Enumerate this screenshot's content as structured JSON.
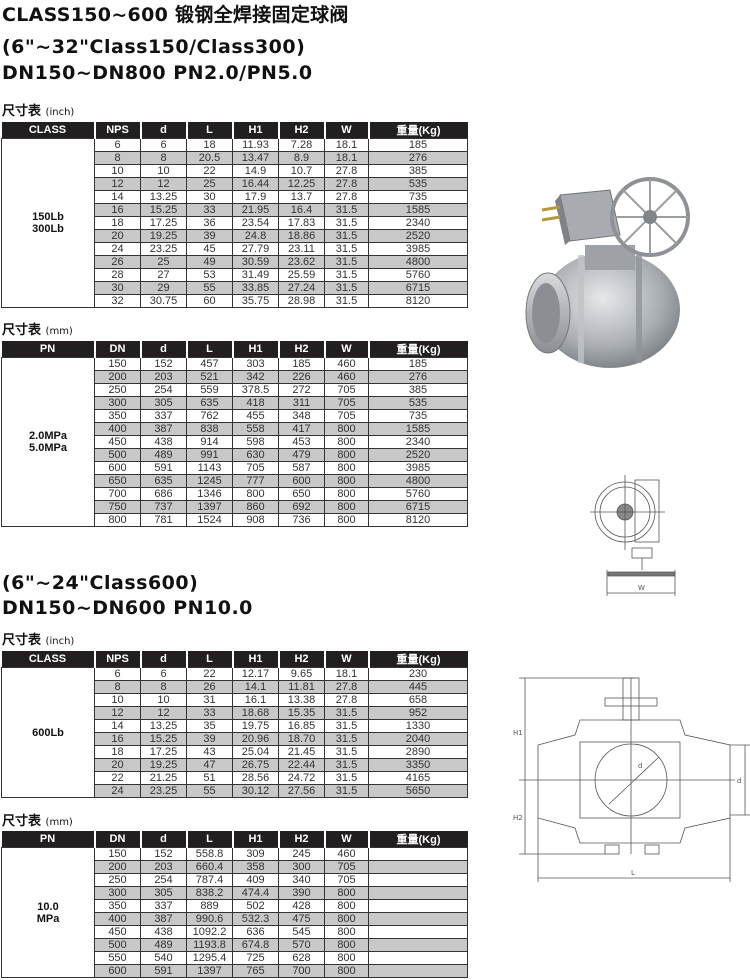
{
  "title": "CLASS150~600 锻钢全焊接固定球阀",
  "section1": {
    "line1": "(6\"~32\"Class150/Class300)",
    "line2": "DN150~DN800   PN2.0/PN5.0"
  },
  "section2": {
    "line1": "(6\"~24\"Class600)",
    "line2": "DN150~DN600   PN10.0"
  },
  "size_label": "尺寸表",
  "unit_inch": "(inch)",
  "unit_mm": "(mm)",
  "tables": [
    {
      "headers": [
        "CLASS",
        "NPS",
        "d",
        "L",
        "H1",
        "H2",
        "W",
        "重量(Kg)"
      ],
      "group": [
        "150Lb",
        "300Lb"
      ],
      "rows": [
        [
          "6",
          "6",
          "18",
          "11.93",
          "7.28",
          "18.1",
          "185"
        ],
        [
          "8",
          "8",
          "20.5",
          "13.47",
          "8.9",
          "18.1",
          "276"
        ],
        [
          "10",
          "10",
          "22",
          "14.9",
          "10.7",
          "27.8",
          "385"
        ],
        [
          "12",
          "12",
          "25",
          "16.44",
          "12.25",
          "27.8",
          "535"
        ],
        [
          "14",
          "13.25",
          "30",
          "17.9",
          "13.7",
          "27.8",
          "735"
        ],
        [
          "16",
          "15.25",
          "33",
          "21.95",
          "16.4",
          "31.5",
          "1585"
        ],
        [
          "18",
          "17.25",
          "36",
          "23.54",
          "17.83",
          "31.5",
          "2340"
        ],
        [
          "20",
          "19.25",
          "39",
          "24.8",
          "18.86",
          "31.5",
          "2520"
        ],
        [
          "24",
          "23.25",
          "45",
          "27.79",
          "23.11",
          "31.5",
          "3985"
        ],
        [
          "26",
          "25",
          "49",
          "30.59",
          "23.62",
          "31.5",
          "4800"
        ],
        [
          "28",
          "27",
          "53",
          "31.49",
          "25.59",
          "31.5",
          "5760"
        ],
        [
          "30",
          "29",
          "55",
          "33.85",
          "27.24",
          "31.5",
          "6715"
        ],
        [
          "32",
          "30.75",
          "60",
          "35.75",
          "28.98",
          "31.5",
          "8120"
        ]
      ]
    },
    {
      "headers": [
        "PN",
        "DN",
        "d",
        "L",
        "H1",
        "H2",
        "W",
        "重量(Kg)"
      ],
      "group": [
        "2.0MPa",
        "5.0MPa"
      ],
      "rows": [
        [
          "150",
          "152",
          "457",
          "303",
          "185",
          "460",
          "185"
        ],
        [
          "200",
          "203",
          "521",
          "342",
          "226",
          "460",
          "276"
        ],
        [
          "250",
          "254",
          "559",
          "378.5",
          "272",
          "705",
          "385"
        ],
        [
          "300",
          "305",
          "635",
          "418",
          "311",
          "705",
          "535"
        ],
        [
          "350",
          "337",
          "762",
          "455",
          "348",
          "705",
          "735"
        ],
        [
          "400",
          "387",
          "838",
          "558",
          "417",
          "800",
          "1585"
        ],
        [
          "450",
          "438",
          "914",
          "598",
          "453",
          "800",
          "2340"
        ],
        [
          "500",
          "489",
          "991",
          "630",
          "479",
          "800",
          "2520"
        ],
        [
          "600",
          "591",
          "1143",
          "705",
          "587",
          "800",
          "3985"
        ],
        [
          "650",
          "635",
          "1245",
          "777",
          "600",
          "800",
          "4800"
        ],
        [
          "700",
          "686",
          "1346",
          "800",
          "650",
          "800",
          "5760"
        ],
        [
          "750",
          "737",
          "1397",
          "860",
          "692",
          "800",
          "6715"
        ],
        [
          "800",
          "781",
          "1524",
          "908",
          "736",
          "800",
          "8120"
        ]
      ]
    },
    {
      "headers": [
        "CLASS",
        "NPS",
        "d",
        "L",
        "H1",
        "H2",
        "W",
        "重量(Kg)"
      ],
      "group": [
        "600Lb"
      ],
      "rows": [
        [
          "6",
          "6",
          "22",
          "12.17",
          "9.65",
          "18.1",
          "230"
        ],
        [
          "8",
          "8",
          "26",
          "14.1",
          "11.81",
          "27.8",
          "445"
        ],
        [
          "10",
          "10",
          "31",
          "16.1",
          "13.38",
          "27.8",
          "658"
        ],
        [
          "12",
          "12",
          "33",
          "18.68",
          "15.35",
          "31.5",
          "952"
        ],
        [
          "14",
          "13.25",
          "35",
          "19.75",
          "16.85",
          "31.5",
          "1330"
        ],
        [
          "16",
          "15.25",
          "39",
          "20.96",
          "18.70",
          "31.5",
          "2040"
        ],
        [
          "18",
          "17.25",
          "43",
          "25.04",
          "21.45",
          "31.5",
          "2890"
        ],
        [
          "20",
          "19.25",
          "47",
          "26.75",
          "22.44",
          "31.5",
          "3350"
        ],
        [
          "22",
          "21.25",
          "51",
          "28.56",
          "24.72",
          "31.5",
          "4165"
        ],
        [
          "24",
          "23.25",
          "55",
          "30.12",
          "27.56",
          "31.5",
          "5650"
        ]
      ]
    },
    {
      "headers": [
        "PN",
        "DN",
        "d",
        "L",
        "H1",
        "H2",
        "W",
        "重量(Kg)"
      ],
      "group": [
        "10.0",
        "MPa"
      ],
      "rows": [
        [
          "150",
          "152",
          "558.8",
          "309",
          "245",
          "460",
          ""
        ],
        [
          "200",
          "203",
          "660.4",
          "358",
          "300",
          "705",
          ""
        ],
        [
          "250",
          "254",
          "787.4",
          "409",
          "340",
          "705",
          ""
        ],
        [
          "300",
          "305",
          "838.2",
          "474.4",
          "390",
          "800",
          ""
        ],
        [
          "350",
          "337",
          "889",
          "502",
          "428",
          "800",
          ""
        ],
        [
          "400",
          "387",
          "990.6",
          "532.3",
          "475",
          "800",
          ""
        ],
        [
          "450",
          "438",
          "1092.2",
          "636",
          "545",
          "800",
          ""
        ],
        [
          "500",
          "489",
          "1193.8",
          "674.8",
          "570",
          "800",
          ""
        ],
        [
          "550",
          "540",
          "1295.4",
          "725",
          "628",
          "800",
          ""
        ],
        [
          "600",
          "591",
          "1397",
          "765",
          "700",
          "800",
          ""
        ]
      ]
    }
  ],
  "drawing_labels": {
    "h1": "H1",
    "h2": "H2",
    "l": "L",
    "d": "d",
    "w": "W"
  }
}
